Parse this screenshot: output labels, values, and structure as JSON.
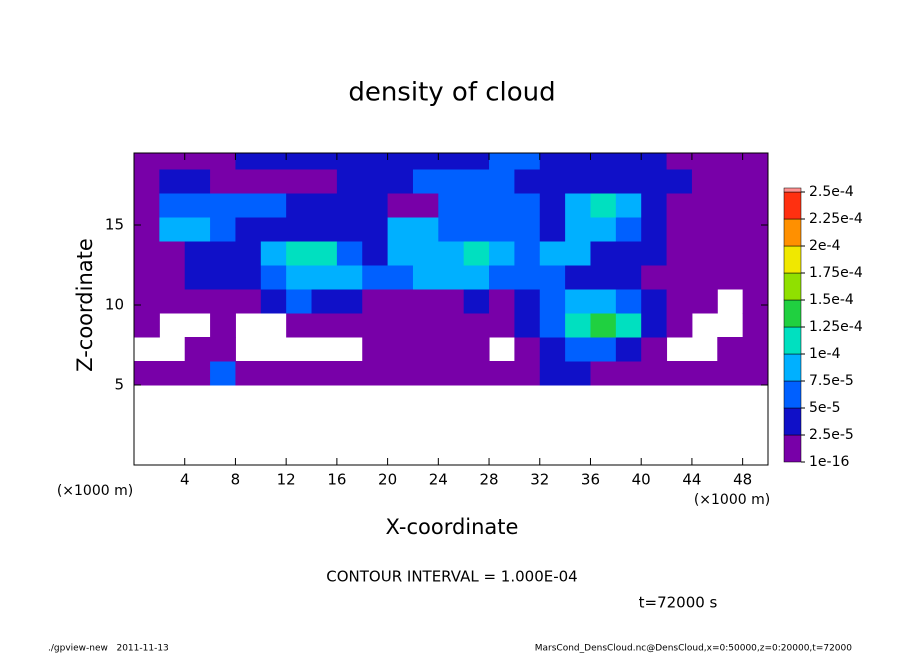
{
  "chart_data": {
    "type": "heatmap",
    "title": "density of cloud",
    "x_label": "X-coordinate",
    "y_label": "Z-coordinate",
    "x_unit_left": "(×1000 m)",
    "x_unit_right": "(×1000 m)",
    "contour_note": "CONTOUR INTERVAL = 1.000E-04",
    "time_note": "t=72000 s",
    "footer_left": "./gpview-new   2011-11-13",
    "footer_right": "MarsCond_DensCloud.nc@DensCloud,x=0:50000,z=0:20000,t=72000",
    "xlim": [
      0,
      50
    ],
    "ylim": [
      0,
      19.5
    ],
    "xticks": [
      4,
      8,
      12,
      16,
      20,
      24,
      28,
      32,
      36,
      40,
      44,
      48
    ],
    "yticks": [
      5,
      10,
      15
    ],
    "x_bins": [
      0,
      2,
      4,
      6,
      8,
      10,
      12,
      14,
      16,
      18,
      20,
      22,
      24,
      26,
      28,
      30,
      32,
      34,
      36,
      38,
      40,
      42,
      44,
      46,
      48,
      50
    ],
    "y_bins": [
      0,
      5,
      6.5,
      8,
      9.5,
      11,
      12.5,
      14,
      15.5,
      17,
      18.5,
      19.5
    ],
    "values": [
      [
        null,
        null,
        null,
        null,
        null,
        null,
        null,
        null,
        null,
        null,
        null,
        null,
        null,
        null,
        null,
        null,
        null,
        null,
        null,
        null,
        null,
        null,
        null,
        null,
        null
      ],
      [
        1e-05,
        1e-05,
        1e-05,
        6e-05,
        1e-05,
        1e-05,
        1e-05,
        1e-05,
        1e-05,
        1e-05,
        1e-05,
        1e-05,
        1e-05,
        1e-05,
        1e-05,
        1e-05,
        3.5e-05,
        3.5e-05,
        1e-05,
        1e-05,
        1e-05,
        1e-05,
        1e-05,
        1e-05,
        1e-05
      ],
      [
        null,
        null,
        1e-05,
        1e-05,
        null,
        null,
        null,
        null,
        null,
        1e-05,
        1e-05,
        1e-05,
        1e-05,
        1e-05,
        null,
        1e-05,
        3.5e-05,
        6e-05,
        6e-05,
        3.5e-05,
        1e-05,
        null,
        null,
        1e-05,
        1e-05
      ],
      [
        1e-05,
        null,
        null,
        1e-05,
        null,
        null,
        1e-05,
        1e-05,
        1e-05,
        1e-05,
        1e-05,
        1e-05,
        1e-05,
        1e-05,
        1e-05,
        3.5e-05,
        6e-05,
        0.00011,
        0.00014,
        0.00011,
        3.5e-05,
        1e-05,
        null,
        null,
        1e-05
      ],
      [
        1e-05,
        1e-05,
        1e-05,
        1e-05,
        1e-05,
        3.5e-05,
        6e-05,
        3.5e-05,
        3.5e-05,
        1e-05,
        1e-05,
        1e-05,
        1e-05,
        3.5e-05,
        1e-05,
        3.5e-05,
        6e-05,
        8.5e-05,
        8.5e-05,
        6e-05,
        3.5e-05,
        1e-05,
        1e-05,
        null,
        1e-05
      ],
      [
        1e-05,
        1e-05,
        3.5e-05,
        3.5e-05,
        3.5e-05,
        6e-05,
        8.5e-05,
        8.5e-05,
        8.5e-05,
        6e-05,
        6e-05,
        8.5e-05,
        8.5e-05,
        8.5e-05,
        6e-05,
        6e-05,
        6e-05,
        3.5e-05,
        3.5e-05,
        3.5e-05,
        1e-05,
        1e-05,
        1e-05,
        1e-05,
        1e-05
      ],
      [
        1e-05,
        1e-05,
        3.5e-05,
        3.5e-05,
        3.5e-05,
        8.5e-05,
        0.00011,
        0.00011,
        6e-05,
        3.5e-05,
        8.5e-05,
        8.5e-05,
        8.5e-05,
        0.00011,
        8.5e-05,
        6e-05,
        8.5e-05,
        8.5e-05,
        3.5e-05,
        3.5e-05,
        3.5e-05,
        1e-05,
        1e-05,
        1e-05,
        1e-05
      ],
      [
        1e-05,
        8.5e-05,
        8.5e-05,
        6e-05,
        3.5e-05,
        3.5e-05,
        3.5e-05,
        3.5e-05,
        3.5e-05,
        3.5e-05,
        8.5e-05,
        8.5e-05,
        6e-05,
        6e-05,
        6e-05,
        6e-05,
        3.5e-05,
        8.5e-05,
        8.5e-05,
        6e-05,
        3.5e-05,
        1e-05,
        1e-05,
        1e-05,
        1e-05
      ],
      [
        1e-05,
        6e-05,
        6e-05,
        6e-05,
        6e-05,
        6e-05,
        3.5e-05,
        3.5e-05,
        3.5e-05,
        3.5e-05,
        1e-05,
        1e-05,
        6e-05,
        6e-05,
        6e-05,
        6e-05,
        3.5e-05,
        8.5e-05,
        0.00011,
        8.5e-05,
        3.5e-05,
        1e-05,
        1e-05,
        1e-05,
        1e-05
      ],
      [
        1e-05,
        3.5e-05,
        3.5e-05,
        1e-05,
        1e-05,
        1e-05,
        1e-05,
        1e-05,
        3.5e-05,
        3.5e-05,
        3.5e-05,
        6e-05,
        6e-05,
        6e-05,
        6e-05,
        3.5e-05,
        3.5e-05,
        3.5e-05,
        3.5e-05,
        3.5e-05,
        3.5e-05,
        3.5e-05,
        1e-05,
        1e-05,
        1e-05
      ],
      [
        1e-05,
        1e-05,
        1e-05,
        1e-05,
        3.5e-05,
        3.5e-05,
        3.5e-05,
        3.5e-05,
        3.5e-05,
        3.5e-05,
        3.5e-05,
        3.5e-05,
        3.5e-05,
        3.5e-05,
        6e-05,
        6e-05,
        3.5e-05,
        3.5e-05,
        3.5e-05,
        3.5e-05,
        3.5e-05,
        1e-05,
        1e-05,
        1e-05,
        1e-05
      ]
    ],
    "levels": [
      {
        "value": 1e-16,
        "label": "1e-16"
      },
      {
        "value": 2.5e-05,
        "label": "2.5e-5"
      },
      {
        "value": 5e-05,
        "label": "5e-5"
      },
      {
        "value": 7.5e-05,
        "label": "7.5e-5"
      },
      {
        "value": 0.0001,
        "label": "1e-4"
      },
      {
        "value": 0.000125,
        "label": "1.25e-4"
      },
      {
        "value": 0.00015,
        "label": "1.5e-4"
      },
      {
        "value": 0.000175,
        "label": "1.75e-4"
      },
      {
        "value": 0.0002,
        "label": "2e-4"
      },
      {
        "value": 0.000225,
        "label": "2.25e-4"
      },
      {
        "value": 0.00025,
        "label": "2.5e-4"
      }
    ],
    "level_colors": [
      "#7800a8",
      "#1010c8",
      "#0060ff",
      "#00b0ff",
      "#00e0c0",
      "#20d040",
      "#90e000",
      "#f0e800",
      "#ff9000",
      "#ff3010"
    ]
  }
}
